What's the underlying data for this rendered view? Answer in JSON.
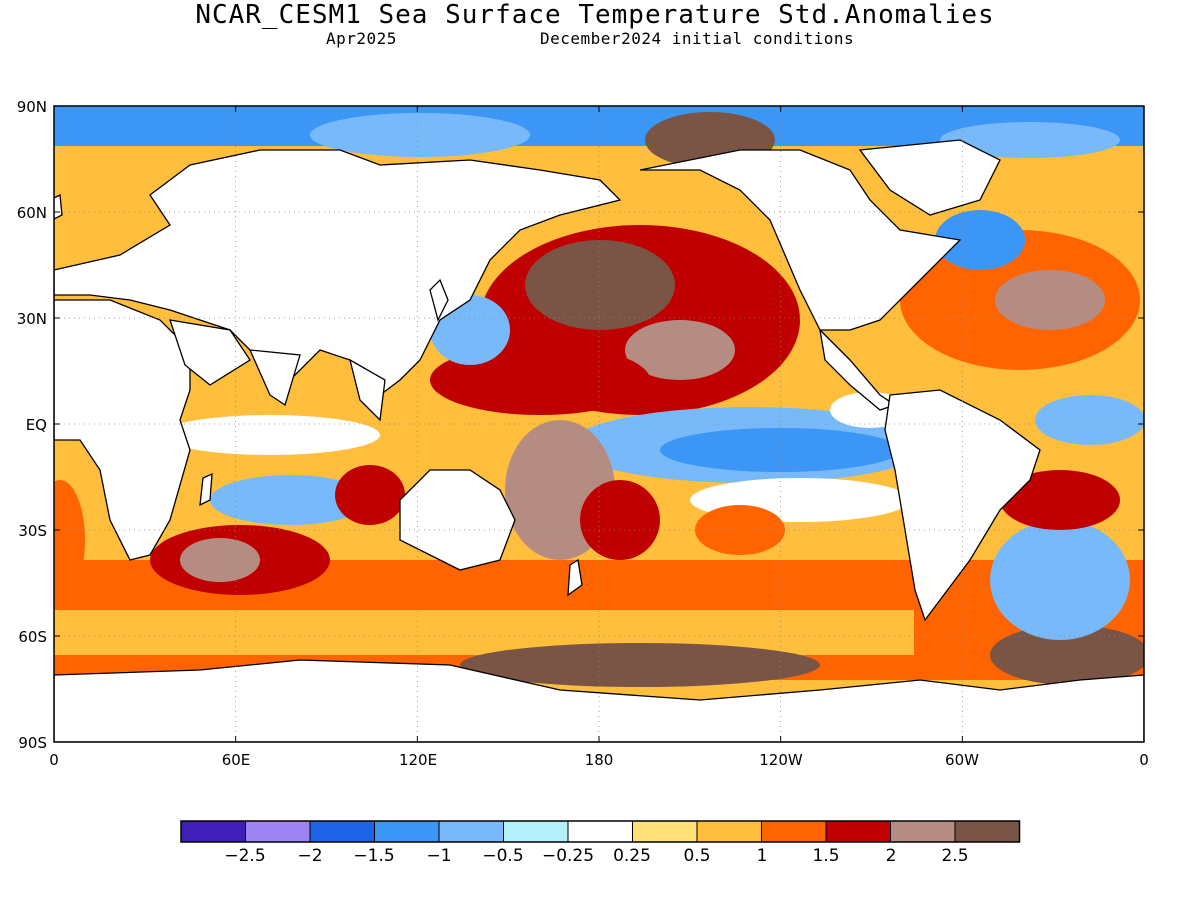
{
  "header": {
    "title": "NCAR_CESM1 Sea Surface Temperature Std.Anomalies",
    "valid_month": "Apr2025",
    "init_text": "December2024 initial conditions"
  },
  "axes": {
    "lat_labels": [
      "90N",
      "60N",
      "30N",
      "EQ",
      "30S",
      "60S",
      "90S"
    ],
    "lon_labels": [
      "0",
      "60E",
      "120E",
      "180",
      "120W",
      "60W",
      "0"
    ]
  },
  "colorbar": {
    "colors": [
      "#3f1fb8",
      "#9e83f2",
      "#1e64e6",
      "#3c96f5",
      "#78b9fa",
      "#b4f0fa",
      "#ffffff",
      "#ffe178",
      "#ffbe3c",
      "#ff6400",
      "#c00000",
      "#b48c82",
      "#7a5546"
    ],
    "labels": [
      "−2.5",
      "−2",
      "−1.5",
      "−1",
      "−0.5",
      "−0.25",
      "0.25",
      "0.5",
      "1",
      "1.5",
      "2",
      "2.5"
    ]
  }
}
